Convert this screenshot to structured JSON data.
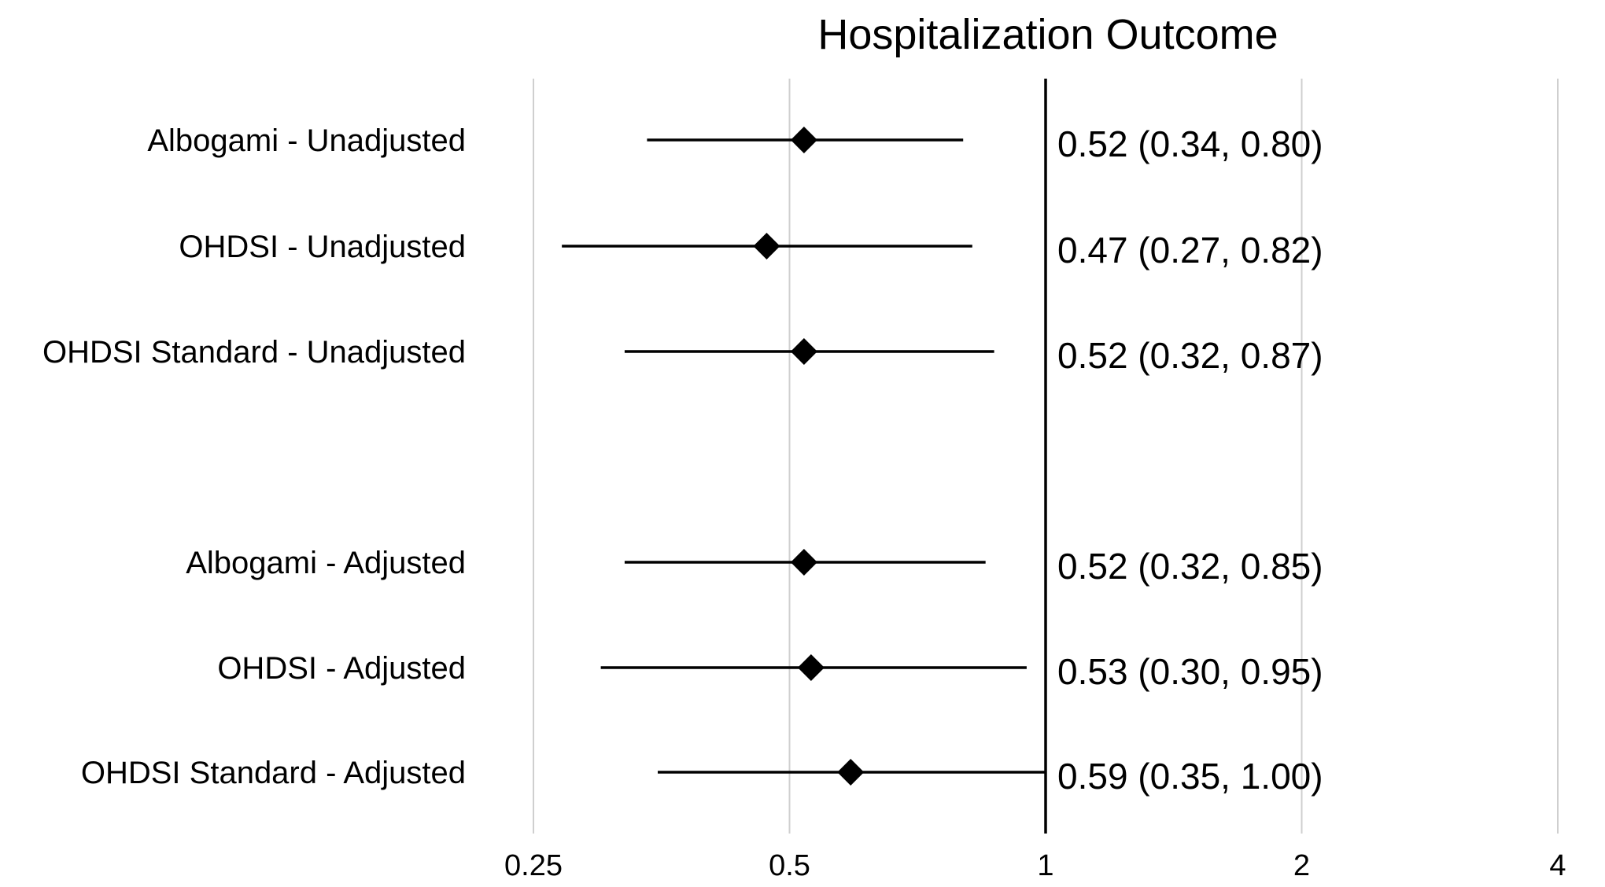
{
  "chart_data": {
    "type": "forest",
    "title": "Hospitalization Outcome",
    "xscale": "log",
    "xlim": [
      0.25,
      4
    ],
    "xticks": [
      0.25,
      0.5,
      1,
      2,
      4
    ],
    "xtick_labels": [
      "0.25",
      "0.5",
      "1",
      "2",
      "4"
    ],
    "reference_line": 1,
    "grid": true,
    "rows": [
      {
        "label": "Albogami - Unadjusted",
        "estimate": 0.52,
        "lower": 0.34,
        "upper": 0.8,
        "text": "0.52 (0.34, 0.80)"
      },
      {
        "label": "OHDSI - Unadjusted",
        "estimate": 0.47,
        "lower": 0.27,
        "upper": 0.82,
        "text": "0.47 (0.27, 0.82)"
      },
      {
        "label": "OHDSI Standard - Unadjusted",
        "estimate": 0.52,
        "lower": 0.32,
        "upper": 0.87,
        "text": "0.52 (0.32, 0.87)"
      },
      {
        "label": "Albogami - Adjusted",
        "estimate": 0.52,
        "lower": 0.32,
        "upper": 0.85,
        "text": "0.52 (0.32, 0.85)"
      },
      {
        "label": "OHDSI - Adjusted",
        "estimate": 0.53,
        "lower": 0.3,
        "upper": 0.95,
        "text": "0.53 (0.30, 0.95)"
      },
      {
        "label": "OHDSI Standard - Adjusted",
        "estimate": 0.59,
        "lower": 0.35,
        "upper": 1.0,
        "text": "0.59 (0.35, 1.00)"
      }
    ]
  }
}
